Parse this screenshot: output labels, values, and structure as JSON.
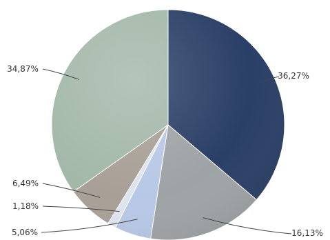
{
  "chart_data": {
    "type": "pie",
    "start_angle_deg": 0,
    "direction": "clockwise",
    "legend": "none",
    "slices": [
      {
        "label": "36,27%",
        "value": 36.27,
        "color": "#2a3f66"
      },
      {
        "label": "16,13%",
        "value": 16.13,
        "color": "#9ea3a6"
      },
      {
        "label": "5,06%",
        "value": 5.06,
        "color": "#b7c8e6"
      },
      {
        "label": "1,18%",
        "value": 1.18,
        "color": "#dde4ee"
      },
      {
        "label": "6,49%",
        "value": 6.49,
        "color": "#a8a097"
      },
      {
        "label": "34,87%",
        "value": 34.87,
        "color": "#a3b8a9"
      }
    ]
  }
}
